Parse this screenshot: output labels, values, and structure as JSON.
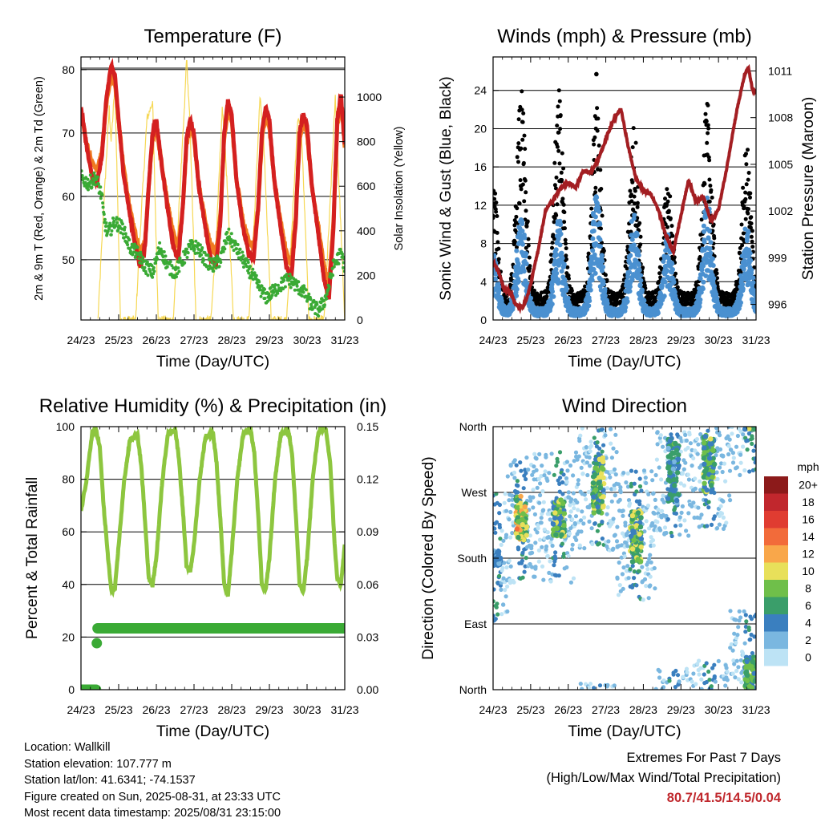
{
  "chart_data": [
    {
      "type": "line",
      "title": "Temperature (F)",
      "xlabel": "Time (Day/UTC)",
      "ylabel": "2m & 9m T (Red, Orange) & 2m Td (Green)",
      "ylabel_right": "Solar Insolation (Yellow)",
      "x_ticks": [
        "24/23",
        "25/23",
        "26/23",
        "27/23",
        "28/23",
        "29/23",
        "30/23",
        "31/23"
      ],
      "x_range": [
        0,
        7
      ],
      "ylim": [
        40.5,
        82
      ],
      "y_ticks": [
        50,
        60,
        70,
        80
      ],
      "ylim_right": [
        0,
        1180
      ],
      "y_ticks_right": [
        0,
        200,
        400,
        600,
        800,
        1000
      ],
      "grid": "horizontal",
      "series": [
        {
          "name": "2m T",
          "color": "#d42020",
          "axis": "left",
          "x": [
            0,
            0.1,
            0.2,
            0.3,
            0.42,
            0.55,
            0.68,
            0.8,
            0.9,
            1.0,
            1.12,
            1.3,
            1.45,
            1.58,
            1.7,
            1.8,
            1.9,
            2.0,
            2.12,
            2.3,
            2.45,
            2.58,
            2.7,
            2.8,
            2.9,
            3.0,
            3.12,
            3.3,
            3.45,
            3.58,
            3.7,
            3.8,
            3.9,
            4.0,
            4.12,
            4.3,
            4.45,
            4.58,
            4.7,
            4.8,
            4.9,
            5.0,
            5.12,
            5.3,
            5.45,
            5.58,
            5.7,
            5.8,
            5.9,
            6.0,
            6.12,
            6.3,
            6.45,
            6.58,
            6.7,
            6.8,
            6.9,
            7.0
          ],
          "y": [
            74,
            70,
            66,
            63,
            62,
            66,
            76,
            80.5,
            79,
            72,
            64,
            57,
            52,
            49,
            52,
            62,
            70,
            72,
            66,
            58,
            52,
            50,
            58,
            69,
            72,
            70,
            62,
            55,
            50,
            49,
            56,
            70,
            75,
            73,
            63,
            55,
            51,
            50,
            58,
            70,
            74,
            72,
            63,
            55,
            49,
            47,
            56,
            70,
            73,
            71,
            62,
            54,
            47,
            44,
            55,
            72,
            76,
            68
          ]
        },
        {
          "name": "9m T",
          "color": "#f07a20",
          "axis": "left",
          "x": [
            0,
            0.1,
            0.2,
            0.3,
            0.42,
            0.55,
            0.68,
            0.8,
            0.9,
            1.0,
            1.12,
            1.3,
            1.45,
            1.58,
            1.7,
            1.8,
            1.9,
            2.0,
            2.12,
            2.3,
            2.45,
            2.58,
            2.7,
            2.8,
            2.9,
            3.0,
            3.12,
            3.3,
            3.45,
            3.58,
            3.7,
            3.8,
            3.9,
            4.0,
            4.12,
            4.3,
            4.45,
            4.58,
            4.7,
            4.8,
            4.9,
            5.0,
            5.12,
            5.3,
            5.45,
            5.58,
            5.7,
            5.8,
            5.9,
            6.0,
            6.12,
            6.3,
            6.45,
            6.58,
            6.7,
            6.8,
            6.9,
            7.0
          ],
          "y": [
            73,
            70,
            67,
            65,
            64,
            67,
            75,
            79,
            78,
            72,
            65,
            58,
            54,
            51,
            53,
            62,
            69,
            71,
            66,
            59,
            54,
            52,
            58,
            68,
            71,
            69,
            62,
            56,
            52,
            51,
            57,
            69,
            74,
            72,
            63,
            56,
            53,
            52,
            58,
            69,
            73,
            71,
            63,
            56,
            51,
            49,
            57,
            69,
            72,
            70,
            62,
            55,
            49,
            46,
            56,
            71,
            75,
            68
          ]
        },
        {
          "name": "2m Td",
          "color": "#3aaa35",
          "axis": "left",
          "x": [
            0,
            0.2,
            0.4,
            0.55,
            0.6,
            0.7,
            0.9,
            1.1,
            1.3,
            1.5,
            1.7,
            1.9,
            2.1,
            2.3,
            2.5,
            2.7,
            2.9,
            3.1,
            3.3,
            3.5,
            3.7,
            3.9,
            4.1,
            4.3,
            4.5,
            4.7,
            4.9,
            5.1,
            5.3,
            5.5,
            5.7,
            5.9,
            6.1,
            6.3,
            6.5,
            6.7,
            6.9,
            7.0
          ],
          "y": [
            63,
            62,
            63,
            60,
            57,
            54,
            56,
            55,
            52,
            51,
            49,
            48,
            52,
            49,
            48,
            50,
            52,
            52,
            50,
            49,
            50,
            54,
            52,
            50,
            48,
            46,
            44,
            45,
            46,
            47,
            46,
            45,
            43,
            42,
            44,
            49,
            51,
            49
          ]
        },
        {
          "name": "Solar Insolation",
          "color": "#f5d442",
          "axis": "right",
          "x": [
            0.45,
            0.6,
            0.75,
            0.8,
            0.9,
            1.05,
            1.45,
            1.6,
            1.75,
            1.9,
            2.05,
            2.45,
            2.6,
            2.75,
            2.8,
            2.9,
            3.05,
            3.45,
            3.6,
            3.75,
            3.85,
            4.05,
            4.45,
            4.6,
            4.75,
            4.85,
            5.05,
            5.45,
            5.6,
            5.75,
            5.85,
            6.05,
            6.45,
            6.6,
            6.75,
            6.85,
            7.0
          ],
          "y": [
            0,
            500,
            950,
            800,
            1050,
            0,
            0,
            480,
            900,
            980,
            0,
            0,
            500,
            960,
            1180,
            850,
            0,
            0,
            400,
            950,
            700,
            0,
            0,
            450,
            1000,
            800,
            0,
            0,
            420,
            900,
            850,
            0,
            0,
            480,
            1000,
            600,
            0
          ]
        }
      ]
    },
    {
      "type": "scatter",
      "title": "Winds (mph) & Pressure (mb)",
      "xlabel": "Time (Day/UTC)",
      "ylabel": "Sonic Wind & Gust (Blue, Black)",
      "ylabel_right": "Station Pressure (Maroon)",
      "x_ticks": [
        "24/23",
        "25/23",
        "26/23",
        "27/23",
        "28/23",
        "29/23",
        "30/23",
        "31/23"
      ],
      "x_range": [
        0,
        7
      ],
      "ylim": [
        0,
        27.5
      ],
      "y_ticks": [
        0,
        4,
        8,
        12,
        16,
        20,
        24
      ],
      "ylim_right": [
        995.0,
        1011.9
      ],
      "y_ticks_right": [
        996,
        999,
        1002,
        1005,
        1008,
        1011
      ],
      "grid": "horizontal",
      "series": [
        {
          "name": "Sonic Wind",
          "color": "#4a90d0",
          "axis": "left",
          "diurnal": {
            "peaks_x": [
              0.0,
              0.75,
              1.75,
              2.75,
              3.75,
              4.65,
              5.7,
              6.75
            ],
            "peaks_y": [
              7,
              12,
              11,
              14,
              12,
              9,
              13,
              10
            ],
            "base": 1.2
          }
        },
        {
          "name": "Gust",
          "color": "#000000",
          "axis": "left",
          "diurnal": {
            "peaks_x": [
              0.0,
              0.75,
              1.75,
              2.75,
              3.75,
              4.65,
              5.7,
              6.75
            ],
            "peaks_y": [
              13,
              21,
              21,
              20,
              18,
              13,
              20,
              16
            ],
            "base": 2.5
          },
          "outlier": {
            "x": 2.75,
            "y": 25.7
          }
        },
        {
          "name": "Station Pressure",
          "color": "#a31e22",
          "axis": "right",
          "type": "line",
          "x": [
            0,
            0.1,
            0.2,
            0.3,
            0.4,
            0.5,
            0.6,
            0.7,
            0.8,
            0.9,
            1.0,
            1.2,
            1.4,
            1.6,
            1.8,
            2.0,
            2.2,
            2.4,
            2.6,
            2.8,
            3.0,
            3.2,
            3.4,
            3.6,
            3.8,
            4.0,
            4.2,
            4.4,
            4.6,
            4.8,
            5.0,
            5.2,
            5.4,
            5.6,
            5.8,
            6.0,
            6.2,
            6.4,
            6.5,
            6.6,
            6.7,
            6.8,
            6.9,
            7.0
          ],
          "y": [
            998.7,
            998.4,
            997.7,
            996.9,
            996.9,
            996.6,
            996.0,
            995.8,
            995.9,
            996.4,
            997.3,
            999.5,
            1002.1,
            1002.7,
            1003.5,
            1003.8,
            1003.5,
            1004.6,
            1004.5,
            1005.3,
            1006.6,
            1007.8,
            1008.6,
            1006.1,
            1004.1,
            1003.3,
            1003.1,
            1002.1,
            1000.4,
            999.4,
            1001.7,
            1004.0,
            1002.6,
            1002.9,
            1001.3,
            1002.1,
            1004.5,
            1007.3,
            1008.6,
            1009.7,
            1010.8,
            1011.2,
            1009.8,
            1009.6
          ]
        }
      ]
    },
    {
      "type": "line",
      "title": "Relative Humidity (%) & Precipitation (in)",
      "xlabel": "Time (Day/UTC)",
      "ylabel": "Percent & Total Rainfall",
      "x_ticks": [
        "24/23",
        "25/23",
        "26/23",
        "27/23",
        "28/23",
        "29/23",
        "30/23",
        "31/23"
      ],
      "x_range": [
        0,
        7
      ],
      "ylim": [
        0,
        100
      ],
      "y_ticks": [
        0,
        20,
        40,
        60,
        80,
        100
      ],
      "ylim_right": [
        0,
        0.15
      ],
      "y_ticks_right": [
        "0.00",
        "0.03",
        "0.06",
        "0.09",
        "0.12",
        "0.15"
      ],
      "grid": "horizontal",
      "series": [
        {
          "name": "Relative Humidity",
          "color": "#8dc63f",
          "axis": "left",
          "x": [
            0,
            0.15,
            0.3,
            0.4,
            0.5,
            0.6,
            0.72,
            0.8,
            0.9,
            1.0,
            1.15,
            1.3,
            1.5,
            1.6,
            1.72,
            1.8,
            1.9,
            2.0,
            2.15,
            2.3,
            2.5,
            2.6,
            2.72,
            2.8,
            2.9,
            3.0,
            3.15,
            3.3,
            3.5,
            3.6,
            3.72,
            3.8,
            3.9,
            4.0,
            4.15,
            4.3,
            4.5,
            4.6,
            4.72,
            4.8,
            4.9,
            5.0,
            5.15,
            5.3,
            5.5,
            5.6,
            5.72,
            5.8,
            5.9,
            6.0,
            6.15,
            6.3,
            6.5,
            6.62,
            6.72,
            6.8,
            6.9,
            7.0
          ],
          "y": [
            68,
            80,
            98,
            99,
            92,
            70,
            50,
            38,
            38,
            55,
            80,
            95,
            97,
            85,
            60,
            42,
            40,
            50,
            78,
            97,
            99,
            88,
            65,
            47,
            45,
            55,
            80,
            96,
            98,
            86,
            60,
            40,
            36,
            52,
            80,
            97,
            99,
            90,
            62,
            40,
            38,
            50,
            80,
            97,
            99,
            90,
            62,
            40,
            37,
            50,
            80,
            98,
            99,
            85,
            58,
            42,
            40,
            55
          ]
        },
        {
          "name": "Total Rainfall",
          "color": "#3aaa35",
          "axis": "right",
          "style": "markers",
          "x": [
            0,
            0.05,
            0.1,
            0.15,
            0.2,
            0.25,
            0.3,
            0.35,
            0.4,
            0.42,
            0.44,
            0.46,
            7.0
          ],
          "y": [
            0,
            0,
            0,
            0,
            0,
            0,
            0,
            0,
            0,
            0.0265,
            0.035,
            0.035,
            0.035
          ]
        }
      ]
    },
    {
      "type": "scatter",
      "title": "Wind Direction",
      "xlabel": "Time (Day/UTC)",
      "ylabel": "Direction (Colored By Speed)",
      "x_ticks": [
        "24/23",
        "25/23",
        "26/23",
        "27/23",
        "28/23",
        "29/23",
        "30/23",
        "31/23"
      ],
      "x_range": [
        0,
        7
      ],
      "ylim": [
        0,
        360
      ],
      "y_ticks": [
        "North",
        "East",
        "South",
        "West",
        "North"
      ],
      "grid": "horizontal",
      "legend": {
        "title": "mph",
        "placement": "right",
        "labels": [
          "20+",
          "18",
          "16",
          "14",
          "12",
          "10",
          "8",
          "6",
          "4",
          "2",
          "0"
        ],
        "colors": [
          "#8c1a1a",
          "#c1272d",
          "#e03c31",
          "#f26b3a",
          "#f9a74a",
          "#e8e05a",
          "#6fbf4a",
          "#3a9e6a",
          "#3a7fbf",
          "#7ab7e0",
          "#bde3f5"
        ]
      },
      "clusters": [
        {
          "x_center": 0.05,
          "dir": 180,
          "spread": 10,
          "speed": 4
        },
        {
          "x_center": 0.75,
          "dir": 235,
          "spread": 30,
          "speed": 11
        },
        {
          "x_center": 1.75,
          "dir": 235,
          "spread": 25,
          "speed": 9
        },
        {
          "x_center": 2.8,
          "dir": 280,
          "spread": 40,
          "speed": 9
        },
        {
          "x_center": 3.8,
          "dir": 210,
          "spread": 35,
          "speed": 9
        },
        {
          "x_center": 4.8,
          "dir": 300,
          "spread": 45,
          "speed": 6
        },
        {
          "x_center": 5.75,
          "dir": 310,
          "spread": 40,
          "speed": 8
        },
        {
          "x_center": 6.85,
          "dir": 20,
          "spread": 25,
          "speed": 8
        }
      ]
    }
  ],
  "station_info": {
    "location": "Location: Wallkill",
    "elevation": "Station elevation: 107.777 m",
    "latlon": "Station lat/lon: 41.6341; -74.1537",
    "created": "Figure created on Sun, 2025-08-31, at 23:33 UTC",
    "timestamp": "Most recent data timestamp: 2025/08/31 23:15:00"
  },
  "extremes": {
    "title": "Extremes For Past 7 Days",
    "subtitle": "(High/Low/Max Wind/Total Precipitation)",
    "values": "80.7/41.5/14.5/0.04"
  }
}
